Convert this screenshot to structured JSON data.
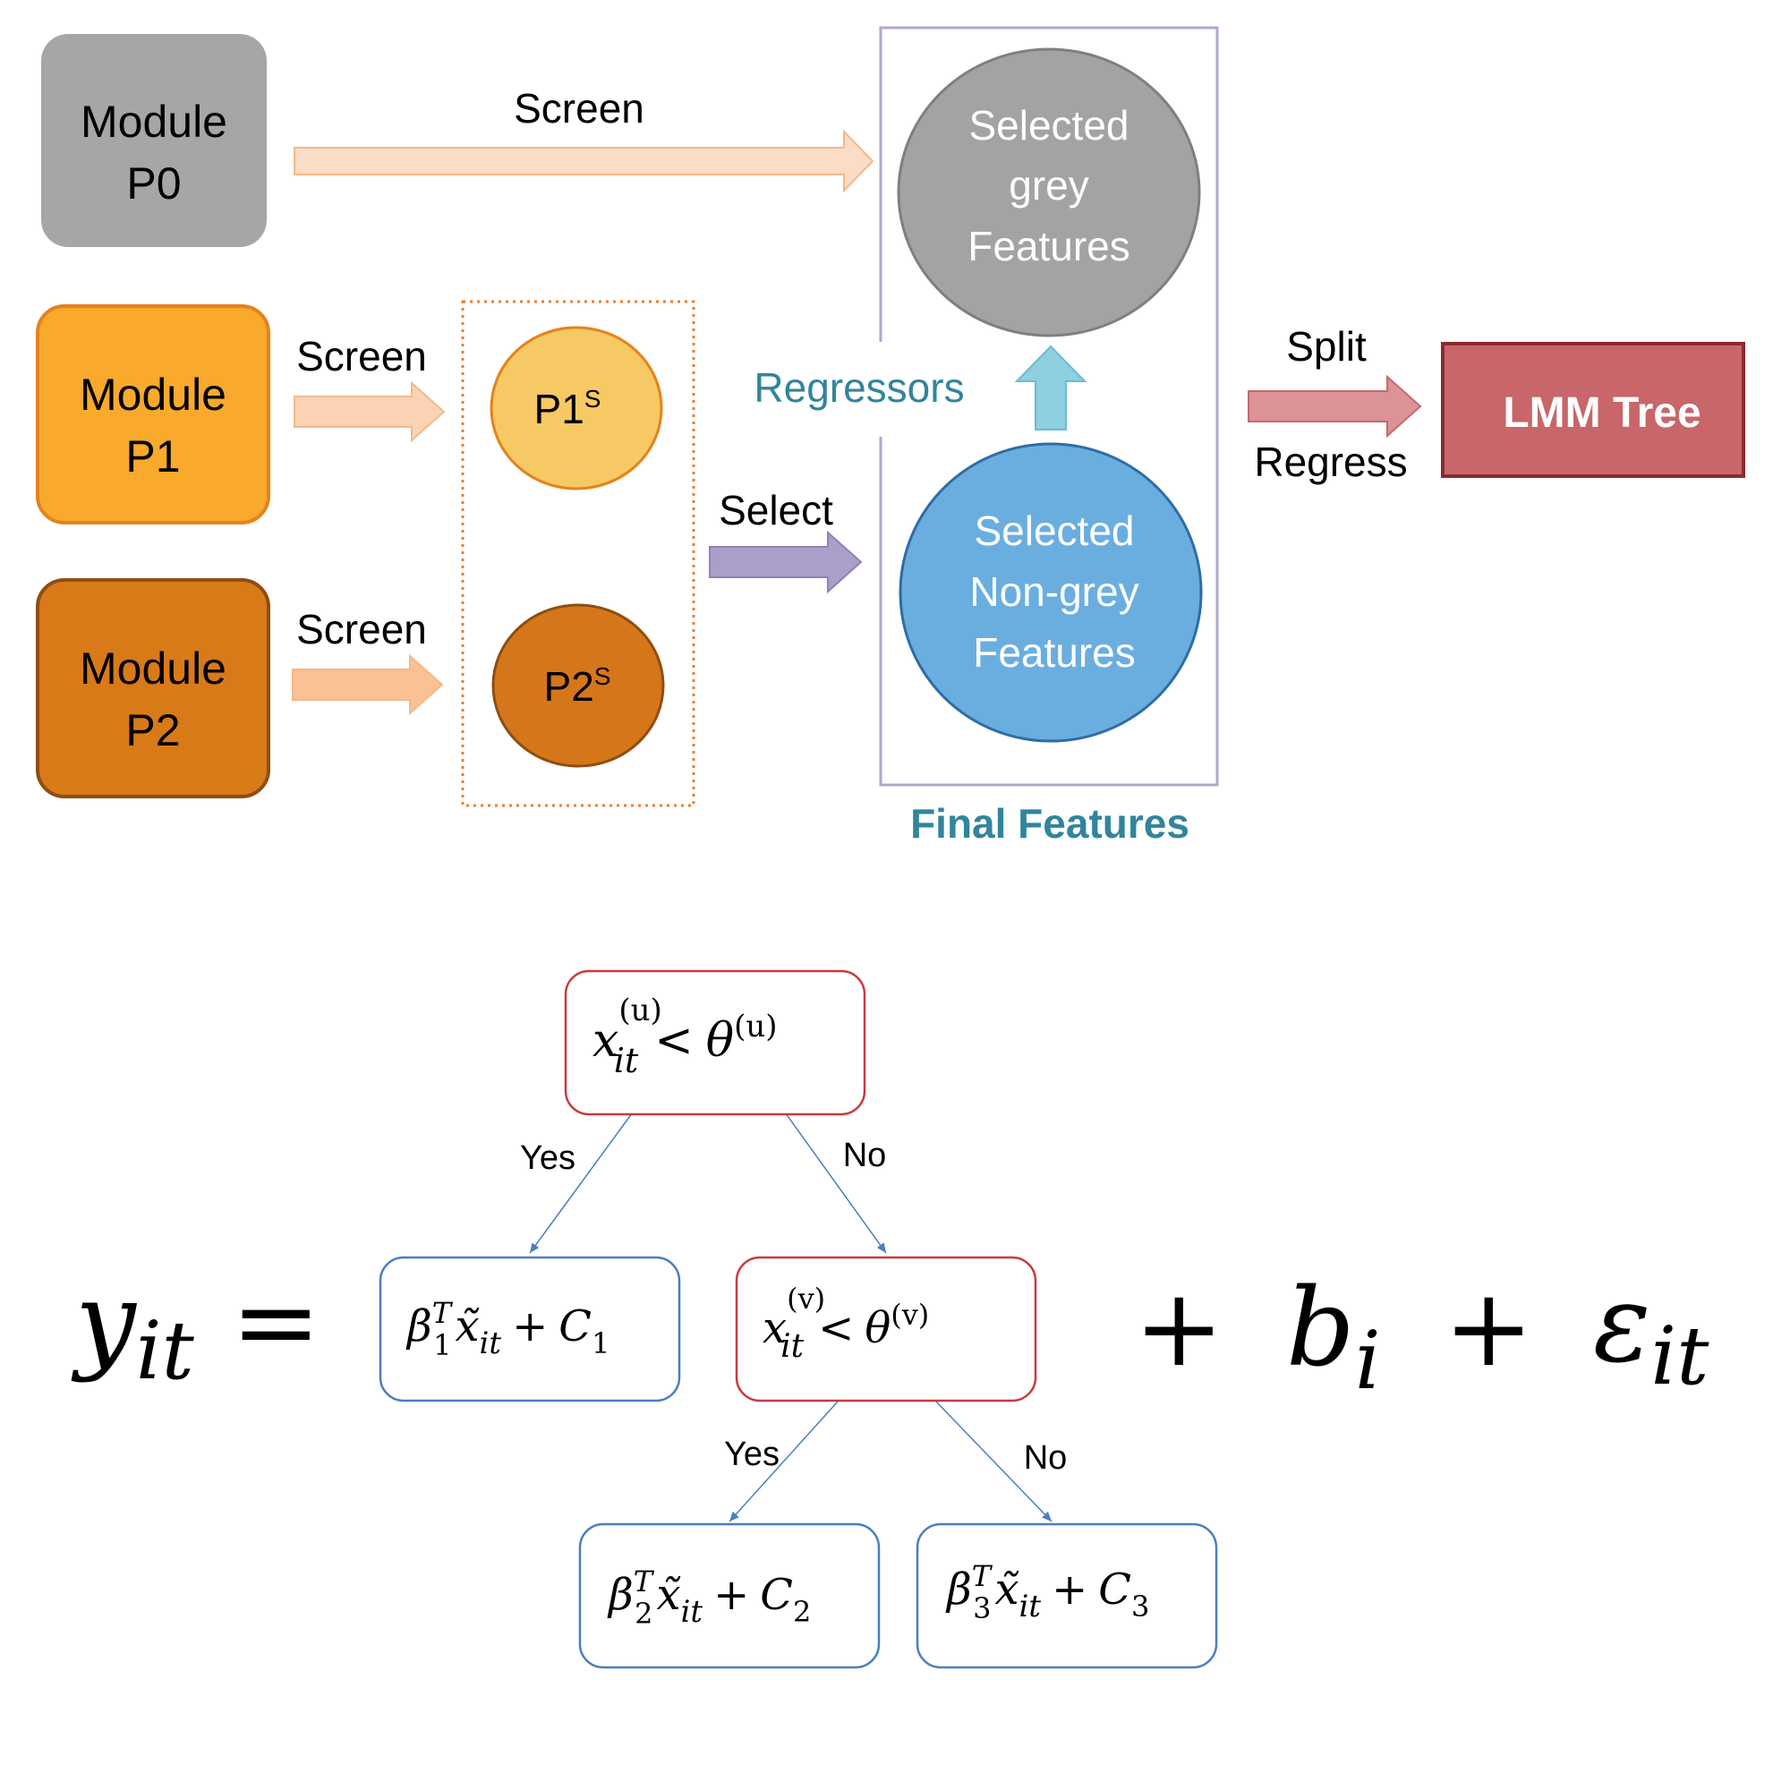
{
  "colors": {
    "module_p0": "#a6a6a6",
    "module_p1": "#f9a92b",
    "module_p2": "#d97a18",
    "circle_p1": "#f7c964",
    "circle_p2": "#d6761a",
    "selected_grey": "#a3a3a3",
    "selected_nongrey": "#6aaee0",
    "lmm_tree": "#c8666a",
    "accent_teal": "#31859c",
    "select_arrow": "#aa9fc9",
    "up_arrow": "#8ecfe0",
    "split_arrow": "#dd9296",
    "screen_arrow": "#f9d2b2",
    "decision_border": "#c9393f",
    "leaf_border": "#4a7ec2"
  },
  "modules": {
    "p0": {
      "line1": "Module",
      "line2": "P0"
    },
    "p1": {
      "line1": "Module",
      "line2": "P1"
    },
    "p2": {
      "line1": "Module",
      "line2": "P2"
    }
  },
  "arrows": {
    "screen_p0": "Screen",
    "screen_p1": "Screen",
    "screen_p2": "Screen",
    "select": "Select",
    "regressors": "Regressors",
    "split": "Split",
    "regress": "Regress"
  },
  "screened": {
    "p1": {
      "base": "P1",
      "sup": "S"
    },
    "p2": {
      "base": "P2",
      "sup": "S"
    }
  },
  "final_features": {
    "label": "Final Features",
    "grey": {
      "line1": "Selected",
      "line2": "grey",
      "line3": "Features"
    },
    "nongrey": {
      "line1": "Selected",
      "line2": "Non-grey",
      "line3": "Features"
    }
  },
  "lmm_tree": {
    "label": "LMM Tree"
  },
  "tree": {
    "root": {
      "var": "x",
      "sub": "it",
      "sup": "(u)",
      "op": "<",
      "theta": "θ",
      "theta_sup": "(u)"
    },
    "node_v": {
      "var": "x",
      "sub": "it",
      "sup": "(v)",
      "op": "<",
      "theta": "θ",
      "theta_sup": "(v)"
    },
    "leaf1": {
      "beta": "β",
      "beta_sub": "1",
      "beta_sup": "T",
      "x": "x̃",
      "x_sub": "it",
      "plus": "+",
      "c": "C",
      "c_sub": "1"
    },
    "leaf2": {
      "beta": "β",
      "beta_sub": "2",
      "beta_sup": "T",
      "x": "x̃",
      "x_sub": "it",
      "plus": "+",
      "c": "C",
      "c_sub": "2"
    },
    "leaf3": {
      "beta": "β",
      "beta_sub": "3",
      "beta_sup": "T",
      "x": "x̃",
      "x_sub": "it",
      "plus": "+",
      "c": "C",
      "c_sub": "3"
    },
    "edge_yes_1": "Yes",
    "edge_no_1": "No",
    "edge_yes_2": "Yes",
    "edge_no_2": "No"
  },
  "equation": {
    "y": "y",
    "y_sub": "it",
    "equals": "=",
    "plus1": "+",
    "b": "b",
    "b_sub": "i",
    "plus2": "+",
    "eps": "ε",
    "eps_sub": "it"
  }
}
